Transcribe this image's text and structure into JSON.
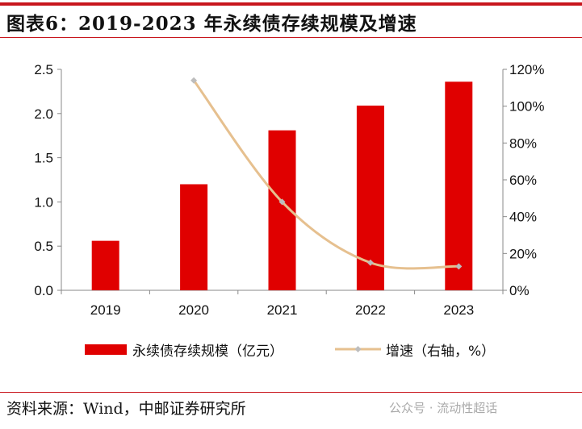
{
  "title": "图表6：2019-2023 年永续债存续规模及增速",
  "source": "资料来源：Wind，中邮证券研究所",
  "watermark": "公众号 · 流动性超话",
  "colors": {
    "bar": "#e00000",
    "line": "#e6c08f",
    "marker": "#bdbdbd",
    "accent": "#c8161d"
  },
  "chart_data": {
    "type": "bar+line",
    "categories": [
      "2019",
      "2020",
      "2021",
      "2022",
      "2023"
    ],
    "series": [
      {
        "name": "永续债存续规模（亿元）",
        "type": "bar",
        "axis": "left",
        "values": [
          0.56,
          1.2,
          1.81,
          2.09,
          2.36
        ]
      },
      {
        "name": "增速（右轴，%）",
        "type": "line",
        "axis": "right",
        "values": [
          null,
          114,
          48,
          15,
          13
        ]
      }
    ],
    "left_axis": {
      "ylim": [
        0,
        2.5
      ],
      "ticks": [
        "0.0",
        "0.5",
        "1.0",
        "1.5",
        "2.0",
        "2.5"
      ]
    },
    "right_axis": {
      "ylim": [
        0,
        120
      ],
      "ticks": [
        "0%",
        "20%",
        "40%",
        "60%",
        "80%",
        "100%",
        "120%"
      ]
    },
    "grid": false,
    "legend": "bottom"
  }
}
